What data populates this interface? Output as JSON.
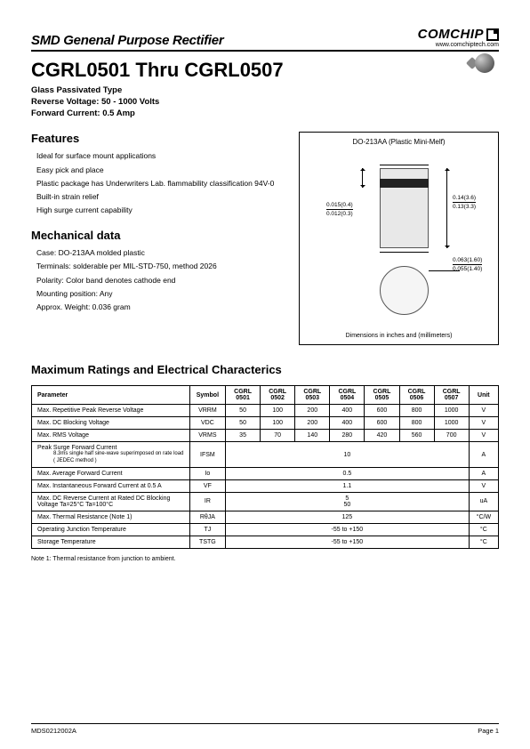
{
  "header": {
    "category": "SMD Genenal Purpose Rectifier",
    "brand": "COMCHIP",
    "url": "www.comchiptech.com"
  },
  "product": {
    "name": "CGRL0501 Thru CGRL0507",
    "type": "Glass Passivated Type",
    "reverse_voltage": "Reverse Voltage: 50 - 1000 Volts",
    "forward_current": "Forward Current: 0.5 Amp"
  },
  "features": {
    "heading": "Features",
    "items": [
      "Ideal for surface mount applications",
      "Easy pick and place",
      "Plastic package has Underwriters Lab. flammability classification 94V-0",
      "Built-in strain relief",
      "High surge current capability"
    ]
  },
  "mechanical": {
    "heading": "Mechanical data",
    "items": [
      "Case: DO-213AA molded plastic",
      "Terminals: solderable per MIL-STD-750, method 2026",
      "Polarity: Color band denotes cathode end",
      "Mounting position: Any",
      "Approx. Weight: 0.036 gram"
    ]
  },
  "diagram": {
    "title": "DO-213AA (Plastic Mini-Melf)",
    "dims": {
      "d1_top": "0.015(0.4)",
      "d1_bot": "0.012(0.3)",
      "d2_top": "0.14(3.6)",
      "d2_bot": "0.13(3.3)",
      "d3_top": "0.063(1.60)",
      "d3_bot": "0.055(1.40)"
    },
    "note": "Dimensions in inches and (millimeters)"
  },
  "ratings": {
    "heading": "Maximum Ratings and Electrical Characterics",
    "columns": {
      "parameter": "Parameter",
      "symbol": "Symbol",
      "parts": [
        "CGRL 0501",
        "CGRL 0502",
        "CGRL 0503",
        "CGRL 0504",
        "CGRL 0505",
        "CGRL 0506",
        "CGRL 0507"
      ],
      "unit": "Unit"
    },
    "rows": [
      {
        "param": "Max. Repetitive Peak Reverse Voltage",
        "symbol": "VRRM",
        "vals": [
          "50",
          "100",
          "200",
          "400",
          "600",
          "800",
          "1000"
        ],
        "unit": "V"
      },
      {
        "param": "Max. DC Blocking Voltage",
        "symbol": "VDC",
        "vals": [
          "50",
          "100",
          "200",
          "400",
          "600",
          "800",
          "1000"
        ],
        "unit": "V"
      },
      {
        "param": "Max. RMS Voltage",
        "symbol": "VRMS",
        "vals": [
          "35",
          "70",
          "140",
          "280",
          "420",
          "560",
          "700"
        ],
        "unit": "V"
      },
      {
        "param": "Peak Surge Forward Current",
        "sub": "8.3ms single half sine-wave superimposed on rate load ( JEDEC method )",
        "symbol": "IFSM",
        "merged": "10",
        "unit": "A"
      },
      {
        "param": "Max. Average Forward Current",
        "symbol": "Io",
        "merged": "0.5",
        "unit": "A"
      },
      {
        "param": "Max. Instantaneous Forward Current at 0.5 A",
        "symbol": "VF",
        "merged": "1.1",
        "unit": "V"
      },
      {
        "param": "Max. DC Reverse Current at Rated DC Blocking Voltage      Ta=25°C\n                                            Ta=100°C",
        "symbol": "IR",
        "merged": "5\n50",
        "unit": "uA"
      },
      {
        "param": "Max. Thermal Resistance (Note 1)",
        "symbol": "RθJA",
        "merged": "125",
        "unit": "°C/W"
      },
      {
        "param": "Operating Junction Temperature",
        "symbol": "TJ",
        "merged": "-55 to +150",
        "unit": "°C"
      },
      {
        "param": "Storage Temperature",
        "symbol": "TSTG",
        "merged": "-55 to +150",
        "unit": "°C"
      }
    ],
    "footnote": "Note 1: Thermal resistance from junction to ambient."
  },
  "footer": {
    "left": "MDS0212002A",
    "right": "Page 1"
  }
}
